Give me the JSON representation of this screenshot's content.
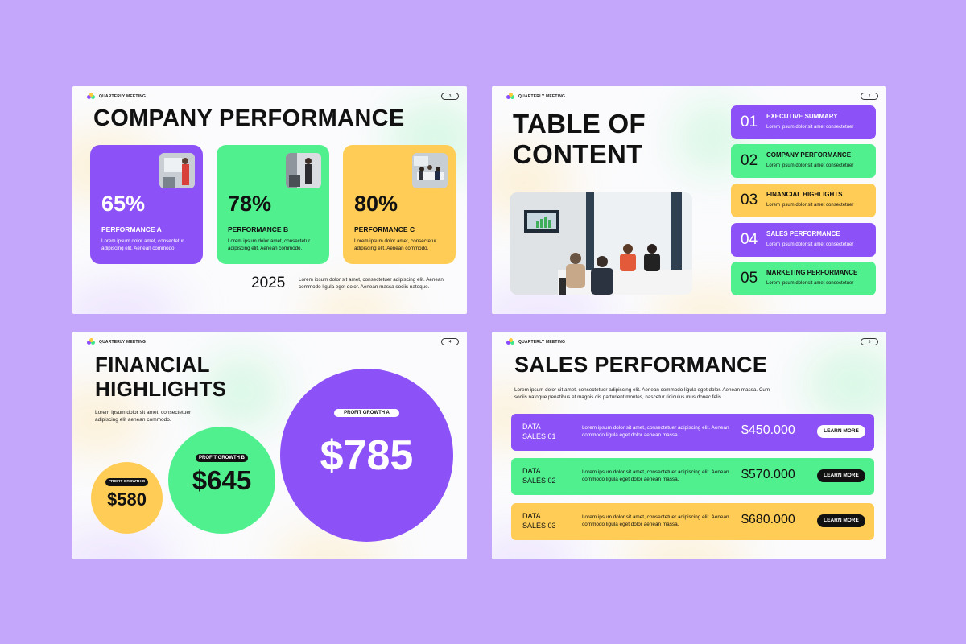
{
  "brand": "QUARTERLY MEETING",
  "slide1": {
    "page": "3",
    "title": "COMPANY PERFORMANCE",
    "cards": [
      {
        "pct": "65%",
        "label": "PERFORMANCE A",
        "desc": "Lorem ipsum dolor amet, consectetur adipiscing elit. Aenean commodo.",
        "color": "#8d52f7"
      },
      {
        "pct": "78%",
        "label": "PERFORMANCE B",
        "desc": "Lorem ipsum dolor amet, consectetur adipiscing elit. Aenean commodo.",
        "color": "#51f08f"
      },
      {
        "pct": "80%",
        "label": "PERFORMANCE C",
        "desc": "Lorem ipsum dolor amet, consectetur adipiscing elit. Aenean commodo.",
        "color": "#ffcd56"
      }
    ],
    "year": "2025",
    "year_desc": "Lorem ipsum dolor sit amet, consectetuer adipiscing elit. Aenean commodo ligula eget dolor. Aenean massa sociis natoque."
  },
  "slide2": {
    "page": "2",
    "title_line1": "TABLE OF",
    "title_line2": "CONTENT",
    "items": [
      {
        "num": "01",
        "label": "EXECUTIVE SUMMARY",
        "desc": "Lorem ipsum dolor sit amet consectetuer"
      },
      {
        "num": "02",
        "label": "COMPANY PERFORMANCE",
        "desc": "Lorem ipsum dolor sit amet consectetuer"
      },
      {
        "num": "03",
        "label": "FINANCIAL HIGHLIGHTS",
        "desc": "Lorem ipsum dolor sit amet consectetuer"
      },
      {
        "num": "04",
        "label": "SALES PERFORMANCE",
        "desc": "Lorem ipsum dolor sit amet consectetuer"
      },
      {
        "num": "05",
        "label": "MARKETING PERFORMANCE",
        "desc": "Lorem ipsum dolor sit amet consectetuer"
      }
    ]
  },
  "slide3": {
    "page": "4",
    "title_line1": "FINANCIAL",
    "title_line2": "HIGHLIGHTS",
    "desc": "Lorem ipsum dolor sit amet, consectetuer adipiscing elit aenean commodo.",
    "circles": {
      "a": {
        "label": "PROFIT GROWTH A",
        "value": "$785"
      },
      "b": {
        "label": "PROFIT GROWTH B",
        "value": "$645"
      },
      "c": {
        "label": "PROFIT GROWTH C",
        "value": "$580"
      }
    }
  },
  "slide4": {
    "page": "5",
    "title": "SALES PERFORMANCE",
    "desc": "Lorem ipsum dolor sit amet, consectetuer adipiscing elit. Aenean commodo ligula eget dolor. Aenean massa. Cum sociis natoque penatibus et magnis dis parturient montes, nascetur ridiculus mus donec felis.",
    "rows": [
      {
        "name_line1": "DATA",
        "name_line2": "SALES 01",
        "desc": "Lorem ipsum dolor sit amet, consectetuer adipiscing elit. Aenean commodo ligula eget dolor aenean massa.",
        "value": "$450.000",
        "button": "LEARN MORE"
      },
      {
        "name_line1": "DATA",
        "name_line2": "SALES 02",
        "desc": "Lorem ipsum dolor sit amet, consectetuer adipiscing elit. Aenean commodo ligula eget dolor aenean massa.",
        "value": "$570.000",
        "button": "LEARN MORE"
      },
      {
        "name_line1": "DATA",
        "name_line2": "SALES 03",
        "desc": "Lorem ipsum dolor sit amet, consectetuer adipiscing elit. Aenean commodo ligula eget dolor aenean massa.",
        "value": "$680.000",
        "button": "LEARN MORE"
      }
    ]
  },
  "colors": {
    "background": "#c4a6fb",
    "purple": "#8d52f7",
    "green": "#51f08f",
    "yellow": "#ffcd56",
    "dark": "#111111"
  }
}
